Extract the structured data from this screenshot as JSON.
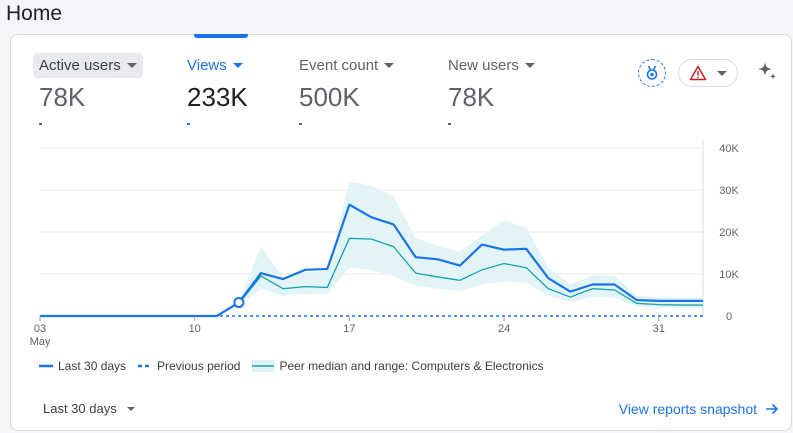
{
  "page": {
    "title": "Home"
  },
  "metrics": [
    {
      "label": "Active users",
      "value": "78K"
    },
    {
      "label": "Views",
      "value": "233K"
    },
    {
      "label": "Event count",
      "value": "500K"
    },
    {
      "label": "New users",
      "value": "78K"
    }
  ],
  "icons": {
    "badge": "award-badge-icon",
    "alert": "warning-icon",
    "sparkle": "sparkle-icon"
  },
  "colors": {
    "primary": "#1a73e8",
    "peer_line": "#12a4af",
    "peer_band": "#e3f4f7",
    "warning": "#c5221f"
  },
  "chart_data": {
    "type": "line",
    "x_ticks": [
      {
        "day": 3,
        "label": "03",
        "sublabel": "May"
      },
      {
        "day": 10,
        "label": "10"
      },
      {
        "day": 17,
        "label": "17"
      },
      {
        "day": 24,
        "label": "24"
      },
      {
        "day": 31,
        "label": "31"
      }
    ],
    "y_ticks": [
      {
        "value": 0,
        "label": "0"
      },
      {
        "value": 10000,
        "label": "10K"
      },
      {
        "value": 20000,
        "label": "20K"
      },
      {
        "value": 30000,
        "label": "30K"
      },
      {
        "value": 40000,
        "label": "40K"
      }
    ],
    "ylim": [
      0,
      40000
    ],
    "xlim": [
      3,
      33
    ],
    "series": [
      {
        "name": "Last 30 days",
        "x": [
          3,
          4,
          5,
          6,
          7,
          8,
          9,
          10,
          11,
          12,
          13,
          14,
          15,
          16,
          17,
          18,
          19,
          20,
          21,
          22,
          23,
          24,
          25,
          26,
          27,
          28,
          29,
          30,
          31,
          32,
          33
        ],
        "values": [
          0,
          0,
          0,
          0,
          0,
          0,
          0,
          0,
          0,
          3200,
          10200,
          8800,
          11000,
          11200,
          26500,
          23500,
          21800,
          14000,
          13500,
          12000,
          17000,
          15800,
          16000,
          9000,
          5800,
          7500,
          7500,
          3800,
          3600,
          3600,
          3600
        ]
      },
      {
        "name": "Previous period",
        "x": [
          3,
          33
        ],
        "values": [
          0,
          0
        ]
      },
      {
        "name": "Peer median and range: Computers & Electronics",
        "x": [
          12,
          13,
          14,
          15,
          16,
          17,
          18,
          19,
          20,
          21,
          22,
          23,
          24,
          25,
          26,
          27,
          28,
          29,
          30,
          31,
          32,
          33
        ],
        "values": [
          3000,
          9500,
          6500,
          7000,
          6800,
          18500,
          18300,
          16500,
          10200,
          9300,
          8500,
          11000,
          12500,
          11500,
          6500,
          4500,
          6500,
          6200,
          3000,
          2700,
          2600,
          2600
        ],
        "upper": [
          3500,
          16500,
          9200,
          10500,
          10800,
          32000,
          31000,
          28500,
          18500,
          16800,
          15300,
          19200,
          22800,
          21000,
          11500,
          7500,
          9700,
          9600,
          4800,
          4500,
          4400,
          4400
        ],
        "lower": [
          2500,
          6500,
          4800,
          5200,
          5300,
          11500,
          11000,
          9500,
          7200,
          6500,
          6000,
          7500,
          8200,
          8000,
          4800,
          3300,
          4500,
          4400,
          2200,
          2000,
          2000,
          2000
        ]
      }
    ],
    "highlight_point": {
      "x": 12,
      "y": 3200
    }
  },
  "period_selector": {
    "label": "Last 30 days"
  },
  "snapshot_link": {
    "label": "View reports snapshot"
  }
}
